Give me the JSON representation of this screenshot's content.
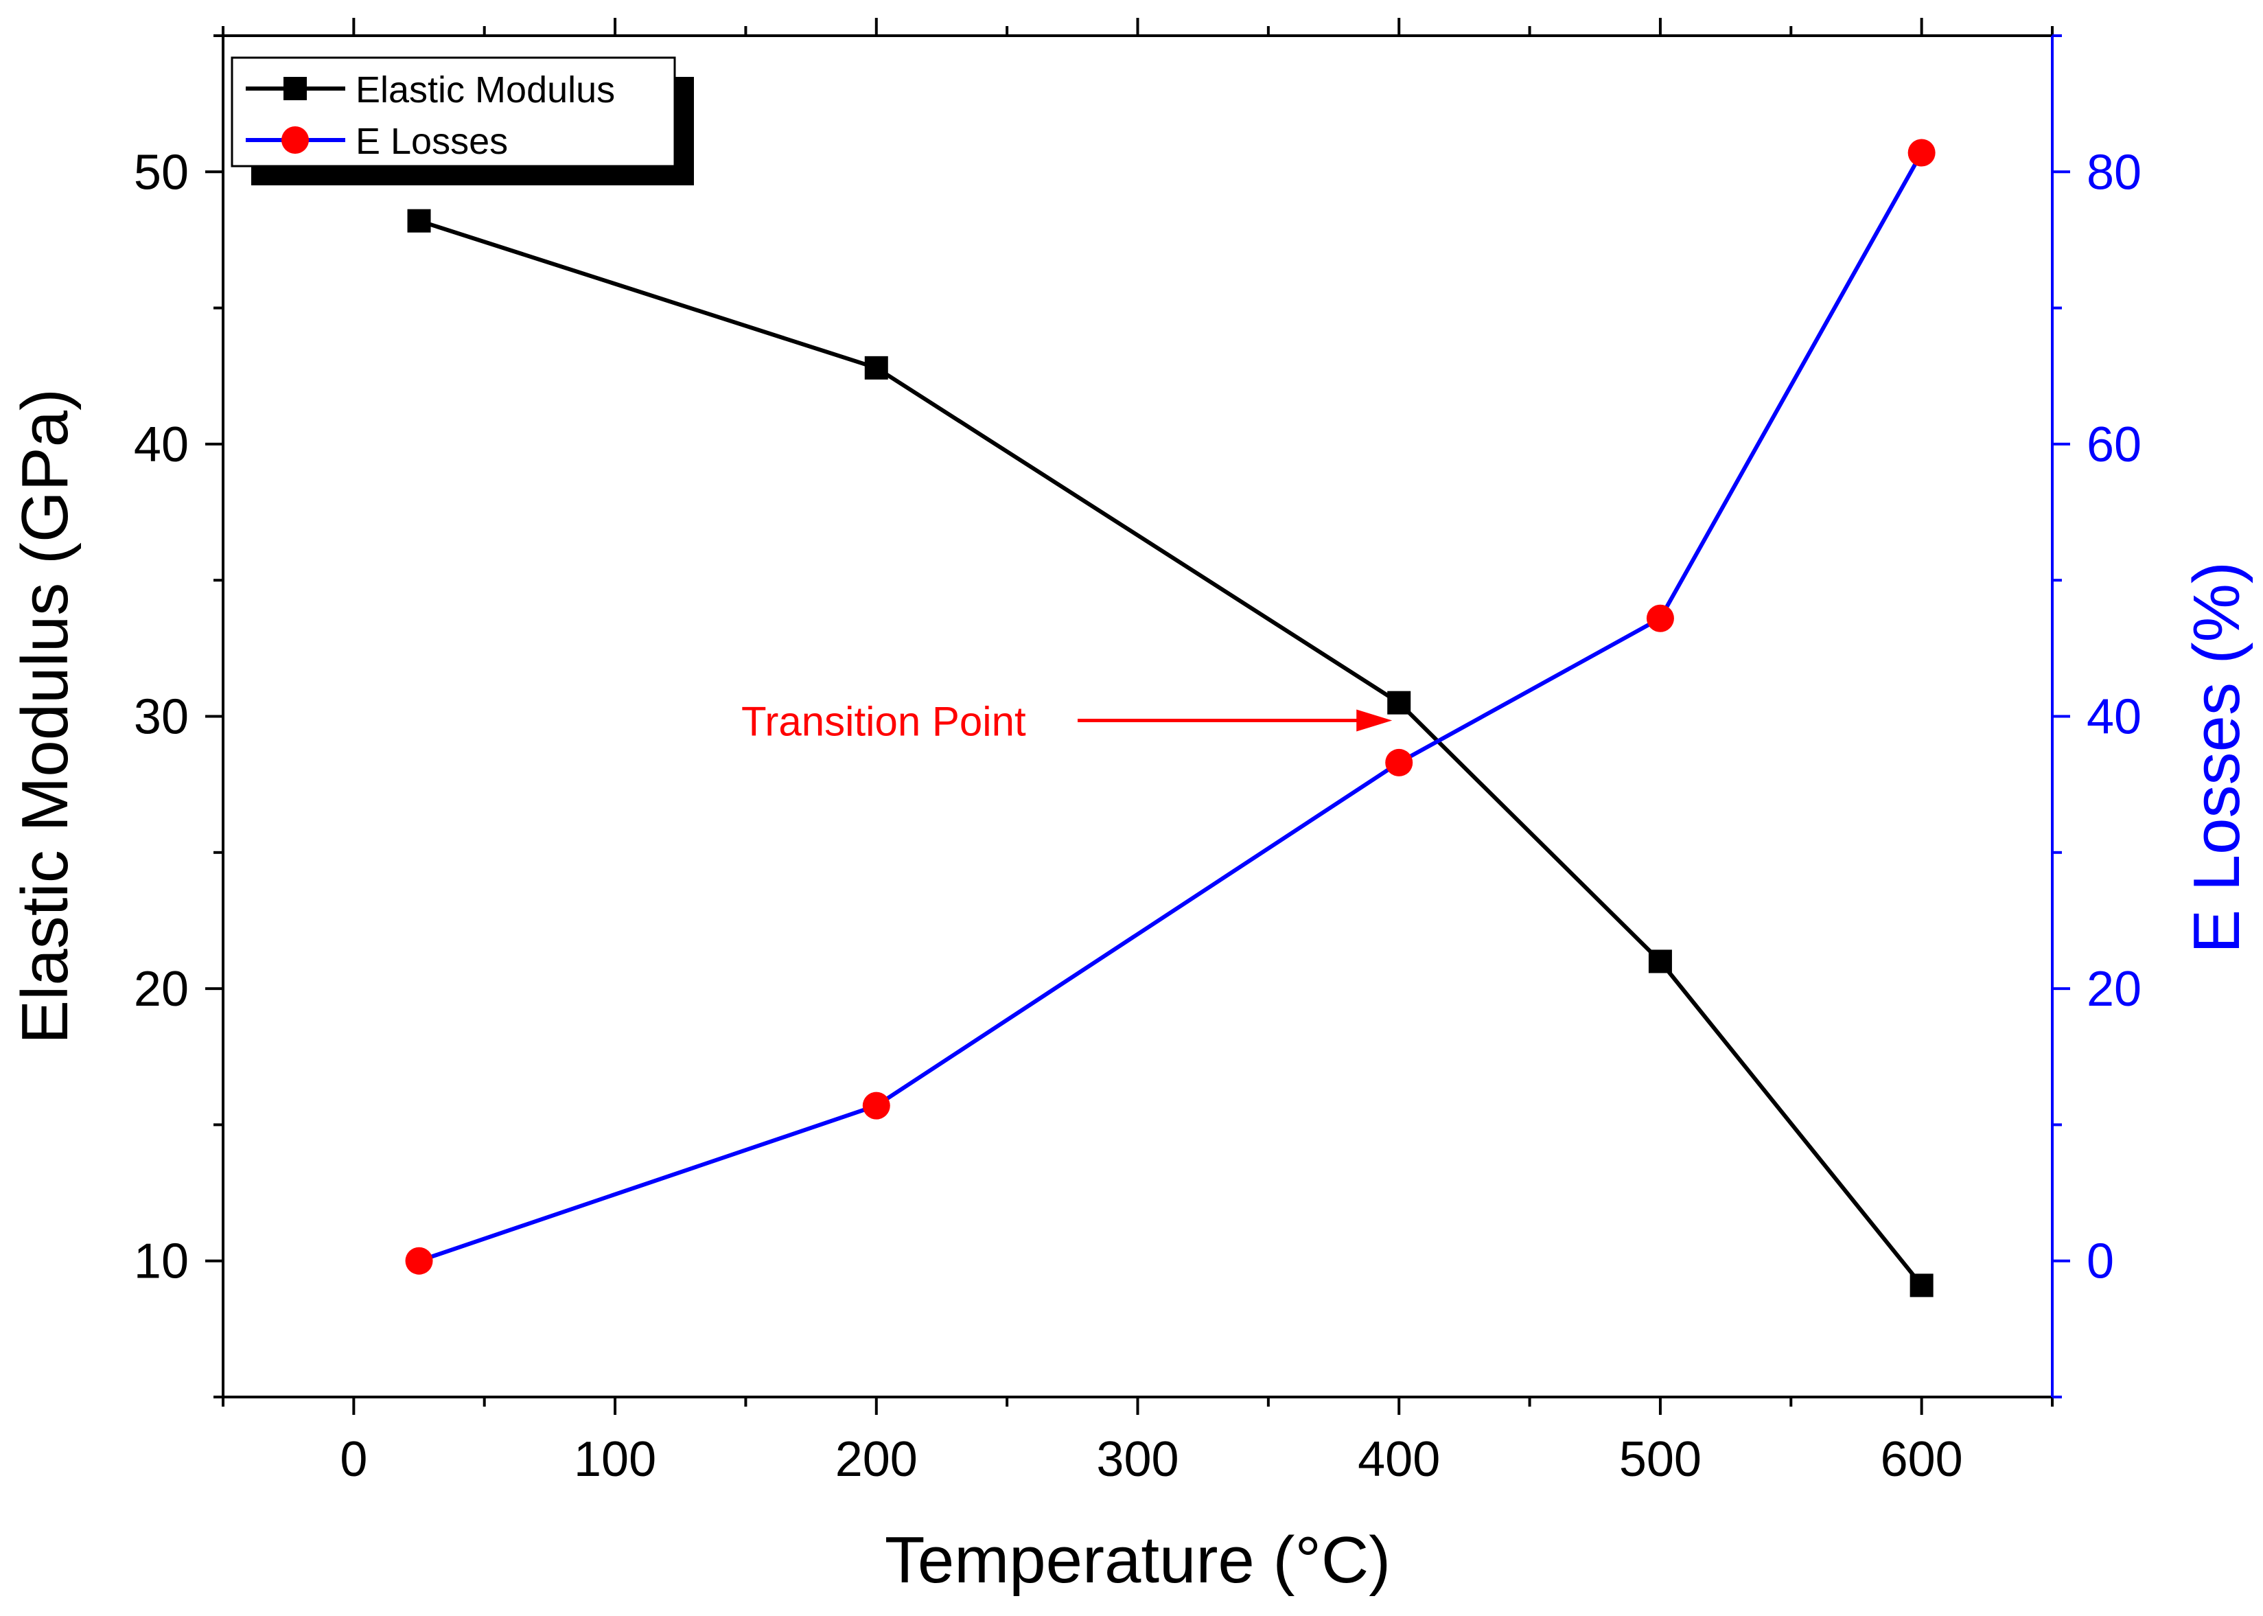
{
  "chart_data": {
    "type": "line",
    "xlabel": "Temperature (°C)",
    "xlim": [
      -50,
      650
    ],
    "x_ticks": [
      0,
      100,
      200,
      300,
      400,
      500,
      600
    ],
    "x_tick_labels": [
      "0",
      "100",
      "200",
      "300",
      "400",
      "500",
      "600"
    ],
    "left_axis": {
      "label": "Elastic Modulus (GPa)",
      "lim": [
        5,
        55
      ],
      "ticks": [
        10,
        20,
        30,
        40,
        50
      ],
      "tick_labels": [
        "10",
        "20",
        "30",
        "40",
        "50"
      ],
      "color": "#000000"
    },
    "right_axis": {
      "label": "E Losses (%)",
      "lim": [
        -10,
        90
      ],
      "ticks": [
        0,
        20,
        40,
        60,
        80
      ],
      "tick_labels": [
        "0",
        "20",
        "40",
        "60",
        "80"
      ],
      "color": "#0000ff"
    },
    "series": [
      {
        "name": "Elastic Modulus",
        "axis": "left",
        "marker": "square",
        "line_color": "#000000",
        "marker_color": "#000000",
        "x": [
          25,
          200,
          400,
          500,
          600
        ],
        "values": [
          48.2,
          42.8,
          30.5,
          21.0,
          9.1
        ]
      },
      {
        "name": "E Losses",
        "axis": "right",
        "marker": "circle",
        "line_color": "#0000ff",
        "marker_color": "#ff0000",
        "x": [
          25,
          200,
          400,
          500,
          600
        ],
        "values": [
          0,
          11.4,
          36.6,
          47.2,
          81.4
        ]
      }
    ],
    "annotation": {
      "text": "Transition Point",
      "color": "#ff0000",
      "x": 400,
      "y": 30,
      "axis": "left"
    },
    "legend": {
      "position": "top-left"
    },
    "grid": false
  }
}
